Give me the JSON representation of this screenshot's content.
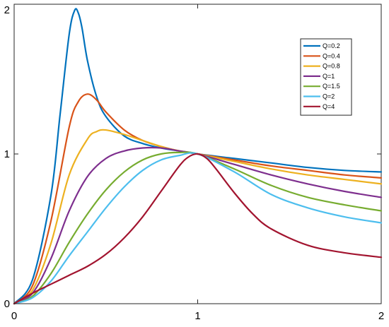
{
  "chart_data": {
    "type": "line",
    "title": "",
    "xlabel": "",
    "ylabel": "",
    "xlim": [
      0,
      2
    ],
    "ylim": [
      0,
      2
    ],
    "xticks": [
      "0",
      "1",
      "2"
    ],
    "yticks": [
      "0",
      "1",
      "2"
    ],
    "grid": false,
    "legend_position": "top-right",
    "series": [
      {
        "name": "Q=0.2",
        "color": "#0072BD",
        "q": 0.2,
        "x": [
          0,
          0.1,
          0.2,
          0.25,
          0.3,
          0.33,
          0.35,
          0.37,
          0.4,
          0.45,
          0.5,
          0.6,
          0.7,
          0.8,
          0.9,
          1.0,
          1.2,
          1.4,
          1.6,
          1.8,
          2.0
        ],
        "y": [
          0,
          0.16,
          0.72,
          1.26,
          1.8,
          1.96,
          1.94,
          1.84,
          1.62,
          1.38,
          1.25,
          1.12,
          1.07,
          1.04,
          1.02,
          1.0,
          0.97,
          0.94,
          0.91,
          0.89,
          0.88
        ]
      },
      {
        "name": "Q=0.4",
        "color": "#D95319",
        "q": 0.4,
        "x": [
          0,
          0.1,
          0.2,
          0.3,
          0.35,
          0.4,
          0.45,
          0.5,
          0.6,
          0.7,
          0.8,
          0.9,
          1.0,
          1.2,
          1.4,
          1.6,
          1.8,
          2.0
        ],
        "y": [
          0,
          0.12,
          0.55,
          1.18,
          1.35,
          1.4,
          1.36,
          1.28,
          1.16,
          1.09,
          1.05,
          1.02,
          1.0,
          0.96,
          0.92,
          0.89,
          0.86,
          0.84
        ]
      },
      {
        "name": "Q=0.8",
        "color": "#EDB120",
        "q": 0.8,
        "x": [
          0,
          0.1,
          0.2,
          0.3,
          0.4,
          0.45,
          0.5,
          0.6,
          0.7,
          0.8,
          0.9,
          1.0,
          1.2,
          1.4,
          1.6,
          1.8,
          2.0
        ],
        "y": [
          0,
          0.09,
          0.4,
          0.86,
          1.1,
          1.15,
          1.16,
          1.13,
          1.09,
          1.05,
          1.02,
          1.0,
          0.95,
          0.9,
          0.86,
          0.83,
          0.8
        ]
      },
      {
        "name": "Q=1",
        "color": "#7E2F8E",
        "q": 1,
        "x": [
          0,
          0.1,
          0.2,
          0.3,
          0.4,
          0.5,
          0.6,
          0.7,
          0.8,
          0.9,
          1.0,
          1.2,
          1.4,
          1.6,
          1.8,
          2.0
        ],
        "y": [
          0,
          0.07,
          0.3,
          0.62,
          0.85,
          0.97,
          1.02,
          1.04,
          1.04,
          1.02,
          1.0,
          0.93,
          0.86,
          0.8,
          0.75,
          0.71
        ]
      },
      {
        "name": "Q=1.5",
        "color": "#77AC30",
        "q": 1.5,
        "x": [
          0,
          0.1,
          0.2,
          0.3,
          0.4,
          0.5,
          0.6,
          0.7,
          0.8,
          0.9,
          1.0,
          1.2,
          1.4,
          1.6,
          1.8,
          2.0
        ],
        "y": [
          0,
          0.05,
          0.2,
          0.41,
          0.6,
          0.76,
          0.88,
          0.96,
          1.0,
          1.01,
          1.0,
          0.9,
          0.79,
          0.71,
          0.66,
          0.62
        ]
      },
      {
        "name": "Q=2",
        "color": "#4DBEEE",
        "q": 2,
        "x": [
          0,
          0.1,
          0.2,
          0.3,
          0.4,
          0.5,
          0.6,
          0.7,
          0.8,
          0.9,
          1.0,
          1.2,
          1.4,
          1.6,
          1.8,
          2.0
        ],
        "y": [
          0,
          0.04,
          0.15,
          0.32,
          0.48,
          0.64,
          0.78,
          0.89,
          0.96,
          0.99,
          1.0,
          0.88,
          0.73,
          0.64,
          0.58,
          0.54
        ]
      },
      {
        "name": "Q=4",
        "color": "#A2142F",
        "q": 4,
        "x": [
          0,
          0.1,
          0.2,
          0.3,
          0.4,
          0.5,
          0.6,
          0.7,
          0.8,
          0.9,
          0.95,
          1.0,
          1.05,
          1.1,
          1.2,
          1.3,
          1.4,
          1.6,
          1.8,
          2.0
        ],
        "y": [
          0,
          0.07,
          0.13,
          0.19,
          0.25,
          0.33,
          0.44,
          0.58,
          0.75,
          0.92,
          0.98,
          1.0,
          0.97,
          0.9,
          0.74,
          0.6,
          0.5,
          0.39,
          0.34,
          0.31
        ]
      }
    ]
  }
}
